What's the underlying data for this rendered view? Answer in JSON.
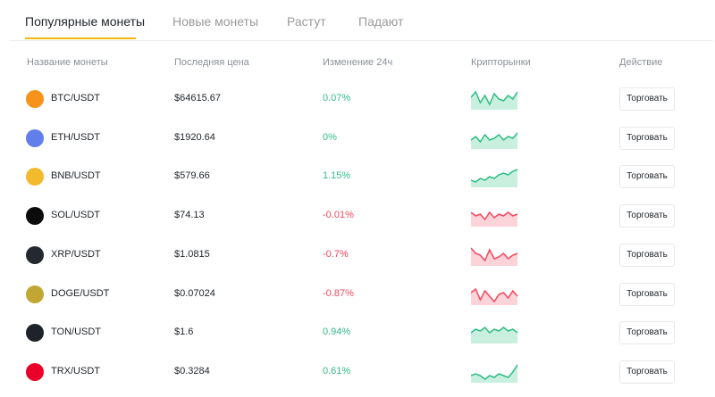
{
  "tabs": [
    "Популярные монеты",
    "Новые монеты",
    "Растут",
    "Падают"
  ],
  "table": {
    "headers": [
      "Название монеты",
      "Последняя цена",
      "Изменение 24ч",
      "Крипторынки",
      "Действие"
    ],
    "rows": [
      {
        "pair": "BTC/USDT",
        "price": "$64615.67",
        "change": "0.07%",
        "action": "Торговать"
      },
      {
        "pair": "ETH/USDT",
        "price": "$1920.64",
        "change": "0%",
        "action": "Торговать"
      },
      {
        "pair": "BNB/USDT",
        "price": "$579.66",
        "change": "1.15%",
        "action": "Торговать"
      },
      {
        "pair": "SOL/USDT",
        "price": "$74.13",
        "change": "-0.01%",
        "action": "Торговать"
      },
      {
        "pair": "XRP/USDT",
        "price": "$1.0815",
        "change": "-0.7%",
        "action": "Торговать"
      },
      {
        "pair": "DOGE/USDT",
        "price": "$0.07024",
        "change": "-0.87%",
        "action": "Торговать"
      },
      {
        "pair": "TON/USDT",
        "price": "$1.6",
        "change": "0.94%",
        "action": "Торговать"
      },
      {
        "pair": "TRX/USDT",
        "price": "$0.3284",
        "change": "0.61%",
        "action": "Торговать"
      }
    ]
  }
}
